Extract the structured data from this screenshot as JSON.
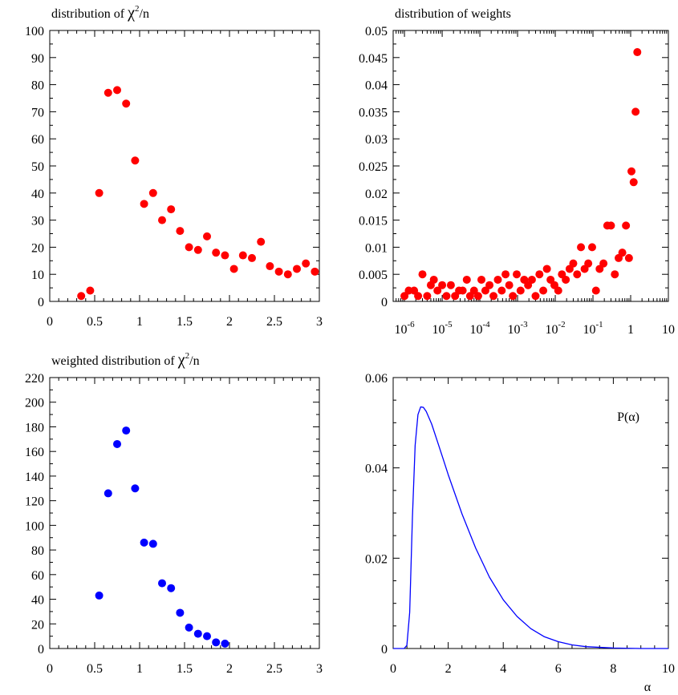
{
  "chart_data": [
    {
      "type": "scatter",
      "title": {
        "pre": "distribution of ",
        "chi": "χ",
        "exp": "2",
        "post": "/n"
      },
      "xlim": [
        0,
        3
      ],
      "ylim": [
        0,
        100
      ],
      "xticks": [
        "0",
        "0.5",
        "1",
        "1.5",
        "2",
        "2.5",
        "3"
      ],
      "yticks": [
        "0",
        "10",
        "20",
        "30",
        "40",
        "50",
        "60",
        "70",
        "80",
        "90",
        "100"
      ],
      "color": "#ff0000",
      "x": [
        0.35,
        0.45,
        0.55,
        0.65,
        0.75,
        0.85,
        0.95,
        1.05,
        1.15,
        1.25,
        1.35,
        1.45,
        1.55,
        1.65,
        1.75,
        1.85,
        1.95,
        2.05,
        2.15,
        2.25,
        2.35,
        2.45,
        2.55,
        2.65,
        2.75,
        2.85,
        2.95
      ],
      "y": [
        2,
        4,
        40,
        77,
        78,
        73,
        52,
        36,
        40,
        30,
        34,
        26,
        20,
        19,
        24,
        18,
        17,
        12,
        17,
        16,
        22,
        13,
        11,
        10,
        12,
        14,
        11
      ]
    },
    {
      "type": "scatter",
      "title": {
        "pre": "distribution of weights"
      },
      "xscale": "log",
      "xlim": [
        -6.3,
        1
      ],
      "ylim": [
        0,
        0.05
      ],
      "xticks": [
        {
          "base": "10",
          "exp": "-6"
        },
        {
          "base": "10",
          "exp": "-5"
        },
        {
          "base": "10",
          "exp": "-4"
        },
        {
          "base": "10",
          "exp": "-3"
        },
        {
          "base": "10",
          "exp": "-2"
        },
        {
          "base": "10",
          "exp": "-1"
        },
        {
          "base": "1",
          "exp": ""
        },
        {
          "base": "10",
          "exp": ""
        }
      ],
      "yticks": [
        "0",
        "0.005",
        "0.01",
        "0.015",
        "0.02",
        "0.025",
        "0.03",
        "0.035",
        "0.04",
        "0.045",
        "0.05"
      ],
      "color": "#ff0000",
      "x": [
        1e-06,
        1.3e-06,
        1.8e-06,
        2.3e-06,
        3e-06,
        4e-06,
        5e-06,
        6e-06,
        7.5e-06,
        1e-05,
        1.3e-05,
        1.7e-05,
        2.2e-05,
        2.8e-05,
        3.5e-05,
        4.5e-05,
        5.5e-05,
        7e-05,
        9e-05,
        0.00011,
        0.00014,
        0.00018,
        0.00023,
        0.0003,
        0.00038,
        0.00048,
        0.0006,
        0.00075,
        0.00095,
        0.0012,
        0.0015,
        0.0019,
        0.0024,
        0.003,
        0.0038,
        0.0048,
        0.006,
        0.0075,
        0.0095,
        0.012,
        0.015,
        0.019,
        0.024,
        0.03,
        0.038,
        0.048,
        0.06,
        0.075,
        0.095,
        0.12,
        0.15,
        0.19,
        0.24,
        0.3,
        0.38,
        0.48,
        0.6,
        0.75,
        0.9,
        1.05,
        1.2,
        1.35,
        1.5
      ],
      "y": [
        0.001,
        0.002,
        0.002,
        0.001,
        0.005,
        0.001,
        0.003,
        0.004,
        0.002,
        0.003,
        0.001,
        0.003,
        0.001,
        0.002,
        0.002,
        0.004,
        0.001,
        0.002,
        0.001,
        0.004,
        0.002,
        0.003,
        0.001,
        0.004,
        0.002,
        0.005,
        0.003,
        0.001,
        0.005,
        0.002,
        0.004,
        0.003,
        0.004,
        0.001,
        0.005,
        0.002,
        0.006,
        0.004,
        0.003,
        0.002,
        0.005,
        0.004,
        0.006,
        0.007,
        0.005,
        0.01,
        0.006,
        0.007,
        0.01,
        0.002,
        0.006,
        0.007,
        0.014,
        0.014,
        0.005,
        0.008,
        0.009,
        0.014,
        0.008,
        0.024,
        0.022,
        0.035,
        0.046
      ]
    },
    {
      "type": "scatter",
      "title": {
        "pre": "weighted distribution of ",
        "chi": "χ",
        "exp": "2",
        "post": "/n"
      },
      "xlim": [
        0,
        3
      ],
      "ylim": [
        0,
        220
      ],
      "xticks": [
        "0",
        "0.5",
        "1",
        "1.5",
        "2",
        "2.5",
        "3"
      ],
      "yticks": [
        "0",
        "20",
        "40",
        "60",
        "80",
        "100",
        "120",
        "140",
        "160",
        "180",
        "200",
        "220"
      ],
      "color": "#0000ff",
      "x": [
        0.55,
        0.65,
        0.75,
        0.85,
        0.95,
        1.05,
        1.15,
        1.25,
        1.35,
        1.45,
        1.55,
        1.65,
        1.75,
        1.85,
        1.95
      ],
      "y": [
        43,
        126,
        166,
        177,
        130,
        86,
        85,
        53,
        49,
        29,
        17,
        12,
        10,
        5,
        4
      ]
    },
    {
      "type": "line",
      "xlabel": "α",
      "series_label": "P(α)",
      "xlim": [
        0,
        10
      ],
      "ylim": [
        0,
        0.06
      ],
      "xticks": [
        "0",
        "2",
        "4",
        "6",
        "8",
        "10"
      ],
      "yticks": [
        "0",
        "0.02",
        "0.04",
        "0.06"
      ],
      "color": "#0000ff",
      "x": [
        0,
        0.4,
        0.5,
        0.6,
        0.7,
        0.8,
        0.9,
        1.0,
        1.1,
        1.2,
        1.4,
        1.6,
        1.8,
        2.0,
        2.5,
        3.0,
        3.5,
        4.0,
        4.5,
        5.0,
        5.5,
        6.0,
        6.5,
        7.0,
        8.0,
        9.0,
        10.0
      ],
      "y": [
        0,
        0,
        0.0007,
        0.008,
        0.029,
        0.045,
        0.0518,
        0.0535,
        0.0534,
        0.0525,
        0.0497,
        0.046,
        0.0423,
        0.0385,
        0.0298,
        0.0222,
        0.0158,
        0.0108,
        0.0071,
        0.0044,
        0.0026,
        0.0015,
        0.0008,
        0.0004,
        0.0001,
        0,
        0
      ]
    }
  ]
}
